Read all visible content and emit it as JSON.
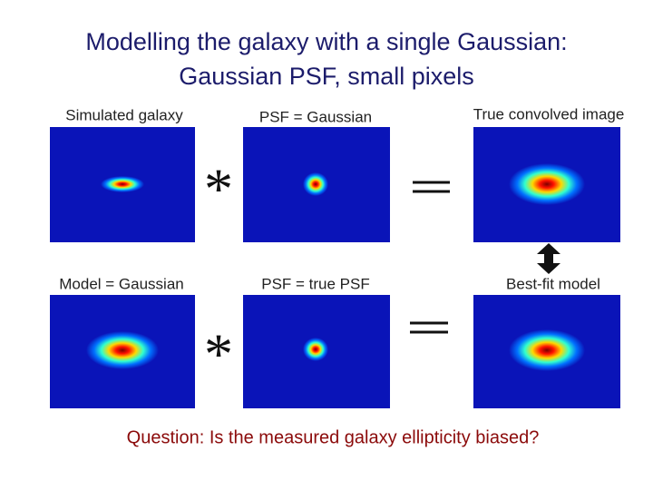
{
  "title": {
    "line1": "Modelling the galaxy with a single Gaussian:",
    "line2": "Gaussian PSF, small pixels"
  },
  "panels": {
    "top": [
      "Simulated galaxy",
      "PSF = Gaussian",
      "True convolved image"
    ],
    "bottom": [
      "Model = Gaussian",
      "PSF = true PSF",
      "Best-fit model"
    ]
  },
  "question": "Question: Is the measured galaxy ellipticity biased?"
}
